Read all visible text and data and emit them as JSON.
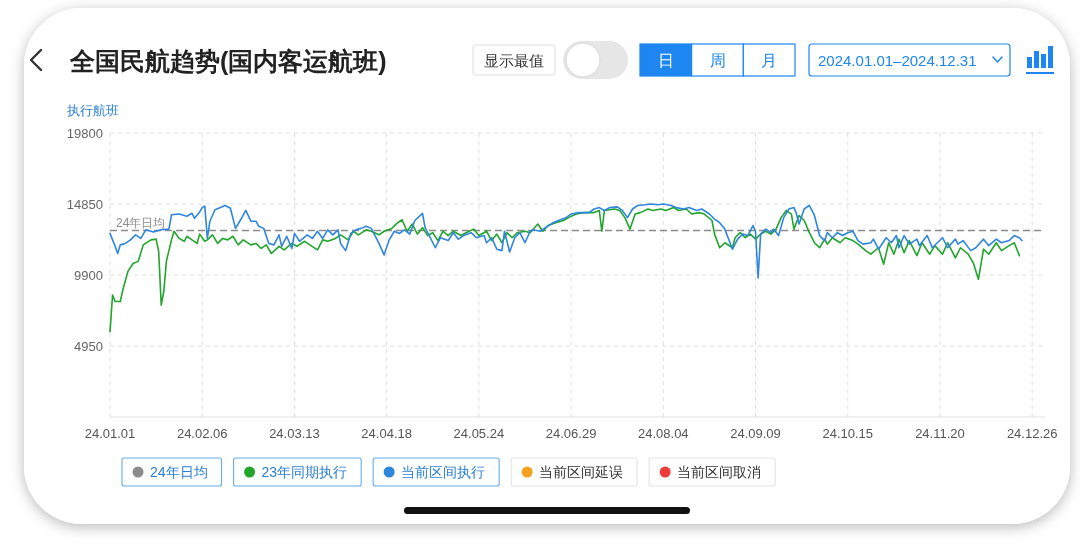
{
  "chart_data": {
    "type": "line",
    "title": "全国民航趋势(国内客运航班)",
    "ylabel": "执行航班",
    "annotations": [
      "显示最值",
      "日",
      "周",
      "月",
      "2024.01.01–2024.12.31"
    ],
    "xlim": [
      "2024-01-01",
      "2024-12-31"
    ],
    "xticks": [
      {
        "value": "2024-01-01",
        "label": "24.01.01"
      },
      {
        "value": "2024-02-06",
        "label": "24.02.06"
      },
      {
        "value": "2024-03-13",
        "label": "24.03.13"
      },
      {
        "value": "2024-04-18",
        "label": "24.04.18"
      },
      {
        "value": "2024-05-24",
        "label": "24.05.24"
      },
      {
        "value": "2024-06-29",
        "label": "24.06.29"
      },
      {
        "value": "2024-08-04",
        "label": "24.08.04"
      },
      {
        "value": "2024-09-09",
        "label": "24.09.09"
      },
      {
        "value": "2024-10-15",
        "label": "24.10.15"
      },
      {
        "value": "2024-11-20",
        "label": "24.11.20"
      },
      {
        "value": "2024-12-26",
        "label": "24.12.26"
      }
    ],
    "ylim": [
      0,
      19800
    ],
    "yticks": [
      4950,
      9900,
      14850,
      19800
    ],
    "grid": true,
    "legend": "bottom",
    "ref_lines": [
      {
        "axis": "y",
        "value": 13000,
        "label": "24年日均",
        "color": "#8c8c8c",
        "line_style": "dashed"
      }
    ],
    "series": [
      {
        "name": "23年同期执行",
        "color": "#22a52c",
        "x": [
          "2024-01-01",
          "2024-01-02",
          "2024-01-03",
          "2024-01-05",
          "2024-01-06",
          "2024-01-08",
          "2024-01-10",
          "2024-01-12",
          "2024-01-14",
          "2024-01-17",
          "2024-01-19",
          "2024-01-20",
          "2024-01-21",
          "2024-01-22",
          "2024-01-23",
          "2024-01-25",
          "2024-01-26",
          "2024-01-28",
          "2024-01-30",
          "2024-01-31",
          "2024-02-02",
          "2024-02-04",
          "2024-02-05",
          "2024-02-07",
          "2024-02-08",
          "2024-02-10",
          "2024-02-12",
          "2024-02-14",
          "2024-02-16",
          "2024-02-18",
          "2024-02-20",
          "2024-02-22",
          "2024-02-25",
          "2024-02-27",
          "2024-02-29",
          "2024-03-02",
          "2024-03-04",
          "2024-03-07",
          "2024-03-09",
          "2024-03-12",
          "2024-03-14",
          "2024-03-17",
          "2024-03-19",
          "2024-03-22",
          "2024-03-24",
          "2024-03-26",
          "2024-03-29",
          "2024-03-31",
          "2024-04-03",
          "2024-04-05",
          "2024-04-07",
          "2024-04-10",
          "2024-04-12",
          "2024-04-15",
          "2024-04-17",
          "2024-04-20",
          "2024-04-22",
          "2024-04-24",
          "2024-04-26",
          "2024-04-28",
          "2024-04-30",
          "2024-05-02",
          "2024-05-04",
          "2024-05-06",
          "2024-05-08",
          "2024-05-10",
          "2024-05-12",
          "2024-05-14",
          "2024-05-17",
          "2024-05-19",
          "2024-05-22",
          "2024-05-24",
          "2024-05-27",
          "2024-05-29",
          "2024-05-31",
          "2024-06-02",
          "2024-06-04",
          "2024-06-06",
          "2024-06-08",
          "2024-06-11",
          "2024-06-13",
          "2024-06-16",
          "2024-06-18",
          "2024-06-20",
          "2024-06-23",
          "2024-06-26",
          "2024-06-28",
          "2024-07-01",
          "2024-07-04",
          "2024-07-08",
          "2024-07-10",
          "2024-07-11",
          "2024-07-12",
          "2024-07-16",
          "2024-07-18",
          "2024-07-20",
          "2024-07-22",
          "2024-07-24",
          "2024-07-26",
          "2024-07-29",
          "2024-07-31",
          "2024-08-03",
          "2024-08-05",
          "2024-08-08",
          "2024-08-10",
          "2024-08-13",
          "2024-08-15",
          "2024-08-18",
          "2024-08-20",
          "2024-08-23",
          "2024-08-24",
          "2024-08-26",
          "2024-08-28",
          "2024-08-31",
          "2024-09-01",
          "2024-09-03",
          "2024-09-05",
          "2024-09-07",
          "2024-09-09",
          "2024-09-11",
          "2024-09-13",
          "2024-09-15",
          "2024-09-17",
          "2024-09-19",
          "2024-09-21",
          "2024-09-23",
          "2024-09-24",
          "2024-09-26",
          "2024-09-28",
          "2024-09-30",
          "2024-10-02",
          "2024-10-04",
          "2024-10-06",
          "2024-10-07",
          "2024-10-09",
          "2024-10-12",
          "2024-10-14",
          "2024-10-17",
          "2024-10-19",
          "2024-10-22",
          "2024-10-24",
          "2024-10-27",
          "2024-10-29",
          "2024-10-31",
          "2024-11-02",
          "2024-11-04",
          "2024-11-06",
          "2024-11-08",
          "2024-11-11",
          "2024-11-13",
          "2024-11-16",
          "2024-11-18",
          "2024-11-21",
          "2024-11-23",
          "2024-11-26",
          "2024-11-28",
          "2024-12-01",
          "2024-12-03",
          "2024-12-05",
          "2024-12-07",
          "2024-12-09",
          "2024-12-12",
          "2024-12-14",
          "2024-12-17",
          "2024-12-19",
          "2024-12-21"
        ],
        "values": [
          5950,
          8500,
          8050,
          8050,
          8850,
          10150,
          10700,
          10850,
          12000,
          12350,
          12400,
          11550,
          7800,
          8750,
          10850,
          12350,
          12950,
          12450,
          12250,
          12600,
          12350,
          12100,
          12750,
          12250,
          12350,
          12700,
          12100,
          12450,
          12350,
          12600,
          12000,
          12350,
          12000,
          12100,
          11750,
          12000,
          11400,
          11900,
          11650,
          12100,
          11900,
          12250,
          12000,
          11650,
          12350,
          12250,
          12450,
          12700,
          12350,
          12950,
          12700,
          13050,
          12950,
          12700,
          12950,
          13150,
          13500,
          13750,
          12950,
          13450,
          12750,
          13200,
          12650,
          12850,
          12300,
          12950,
          12650,
          12950,
          12650,
          12850,
          13100,
          12650,
          12950,
          12300,
          12750,
          12150,
          12850,
          12500,
          12850,
          12950,
          12850,
          13450,
          12950,
          13350,
          13550,
          13700,
          13900,
          14150,
          14250,
          14250,
          14400,
          12950,
          14400,
          14500,
          14400,
          13900,
          13100,
          14150,
          14250,
          14500,
          14400,
          14500,
          14400,
          14600,
          14400,
          14500,
          14150,
          14250,
          14150,
          13700,
          12750,
          11800,
          12150,
          11800,
          12500,
          12850,
          12500,
          12750,
          12400,
          12750,
          12950,
          12750,
          13100,
          13900,
          14400,
          14150,
          13100,
          14050,
          13700,
          12850,
          12150,
          11800,
          12400,
          12050,
          12500,
          12150,
          12500,
          12300,
          12050,
          11600,
          11350,
          11800,
          10650,
          12150,
          11350,
          12400,
          11450,
          12300,
          11250,
          12150,
          11350,
          11950,
          11350,
          12150,
          11100,
          11800,
          11350,
          10750,
          9600,
          11700,
          11350,
          12150,
          11600,
          11950,
          12150,
          11250
        ]
      },
      {
        "name": "当前区间执行",
        "color": "#2f86de",
        "x": [
          "2024-01-01",
          "2024-01-03",
          "2024-01-04",
          "2024-01-05",
          "2024-01-07",
          "2024-01-09",
          "2024-01-11",
          "2024-01-13",
          "2024-01-15",
          "2024-01-18",
          "2024-01-21",
          "2024-01-24",
          "2024-01-25",
          "2024-01-28",
          "2024-01-31",
          "2024-02-02",
          "2024-02-03",
          "2024-02-05",
          "2024-02-06",
          "2024-02-07",
          "2024-02-08",
          "2024-02-09",
          "2024-02-11",
          "2024-02-15",
          "2024-02-17",
          "2024-02-19",
          "2024-02-21",
          "2024-02-23",
          "2024-02-25",
          "2024-02-27",
          "2024-02-28",
          "2024-03-01",
          "2024-03-03",
          "2024-03-05",
          "2024-03-07",
          "2024-03-08",
          "2024-03-10",
          "2024-03-12",
          "2024-03-13",
          "2024-03-15",
          "2024-03-18",
          "2024-03-20",
          "2024-03-22",
          "2024-03-24",
          "2024-03-26",
          "2024-03-28",
          "2024-03-30",
          "2024-03-31",
          "2024-04-02",
          "2024-04-04",
          "2024-04-06",
          "2024-04-08",
          "2024-04-10",
          "2024-04-12",
          "2024-04-15",
          "2024-04-17",
          "2024-04-19",
          "2024-04-21",
          "2024-04-23",
          "2024-04-25",
          "2024-04-27",
          "2024-04-29",
          "2024-05-02",
          "2024-05-03",
          "2024-05-05",
          "2024-05-07",
          "2024-05-09",
          "2024-05-12",
          "2024-05-14",
          "2024-05-16",
          "2024-05-18",
          "2024-05-21",
          "2024-05-23",
          "2024-05-26",
          "2024-05-27",
          "2024-05-29",
          "2024-05-31",
          "2024-06-02",
          "2024-06-03",
          "2024-06-05",
          "2024-06-07",
          "2024-06-09",
          "2024-06-11",
          "2024-06-13",
          "2024-06-14",
          "2024-06-17",
          "2024-06-19",
          "2024-06-22",
          "2024-06-24",
          "2024-06-27",
          "2024-06-29",
          "2024-07-02",
          "2024-07-06",
          "2024-07-08",
          "2024-07-10",
          "2024-07-12",
          "2024-07-14",
          "2024-07-17",
          "2024-07-19",
          "2024-07-21",
          "2024-07-23",
          "2024-07-25",
          "2024-07-28",
          "2024-07-30",
          "2024-08-02",
          "2024-08-04",
          "2024-08-07",
          "2024-08-09",
          "2024-08-12",
          "2024-08-14",
          "2024-08-17",
          "2024-08-19",
          "2024-08-22",
          "2024-08-24",
          "2024-08-26",
          "2024-08-28",
          "2024-08-31",
          "2024-09-02",
          "2024-09-04",
          "2024-09-06",
          "2024-09-08",
          "2024-09-09",
          "2024-09-10",
          "2024-09-11",
          "2024-09-13",
          "2024-09-15",
          "2024-09-16",
          "2024-09-18",
          "2024-09-20",
          "2024-09-22",
          "2024-09-24",
          "2024-09-25",
          "2024-09-26",
          "2024-09-28",
          "2024-09-30",
          "2024-10-02",
          "2024-10-04",
          "2024-10-06",
          "2024-10-07",
          "2024-10-09",
          "2024-10-11",
          "2024-10-13",
          "2024-10-15",
          "2024-10-17",
          "2024-10-19",
          "2024-10-21",
          "2024-10-24",
          "2024-10-25",
          "2024-10-27",
          "2024-10-30",
          "2024-11-01",
          "2024-11-03",
          "2024-11-04",
          "2024-11-06",
          "2024-11-08",
          "2024-11-11",
          "2024-11-12",
          "2024-11-15",
          "2024-11-17",
          "2024-11-19",
          "2024-11-21",
          "2024-11-23",
          "2024-11-26",
          "2024-11-27",
          "2024-11-29",
          "2024-12-02",
          "2024-12-04",
          "2024-12-07",
          "2024-12-09",
          "2024-12-12",
          "2024-12-14",
          "2024-12-17",
          "2024-12-19",
          "2024-12-21",
          "2024-12-22"
        ],
        "values": [
          12800,
          11900,
          11400,
          12000,
          12100,
          12350,
          12700,
          12450,
          13050,
          12900,
          13050,
          13100,
          14100,
          14150,
          14000,
          14200,
          13850,
          14300,
          14600,
          14700,
          12450,
          13650,
          14450,
          14750,
          14550,
          13150,
          13750,
          14400,
          13650,
          13650,
          13300,
          13150,
          12100,
          12000,
          12700,
          11900,
          12600,
          11750,
          12800,
          12250,
          12700,
          12450,
          12950,
          12450,
          13050,
          12700,
          13050,
          12100,
          11600,
          12800,
          13050,
          13150,
          13300,
          13150,
          12100,
          11300,
          12350,
          12950,
          12800,
          13050,
          12750,
          13700,
          14200,
          13200,
          12500,
          11800,
          12500,
          12300,
          12850,
          12400,
          12650,
          12850,
          12500,
          12650,
          12150,
          12500,
          11700,
          11600,
          12950,
          11500,
          12500,
          12850,
          12150,
          12950,
          13050,
          12950,
          13200,
          13550,
          13700,
          13900,
          14150,
          14250,
          14250,
          14500,
          14600,
          14400,
          14600,
          14650,
          14400,
          13900,
          14500,
          14750,
          14800,
          14850,
          14800,
          14850,
          14750,
          14600,
          14500,
          14600,
          14400,
          14500,
          14150,
          13800,
          13550,
          13100,
          11700,
          12400,
          12750,
          12650,
          13350,
          12950,
          9700,
          12750,
          13100,
          12850,
          13100,
          12650,
          13900,
          14500,
          14600,
          14150,
          13450,
          14500,
          14750,
          14050,
          12650,
          12300,
          12850,
          12500,
          12850,
          12650,
          12850,
          12950,
          12300,
          12050,
          12150,
          12400,
          11700,
          12500,
          12150,
          12650,
          11800,
          12650,
          12050,
          12400,
          11950,
          12650,
          11800,
          12150,
          12500,
          11800,
          12400,
          12050,
          12300,
          11600,
          11800,
          12400,
          11950,
          12400,
          12150,
          12300,
          12650,
          12500,
          12300
        ]
      },
      {
        "name": "当前区间延误",
        "color": "#f5a020"
      },
      {
        "name": "当前区间取消",
        "color": "#ee3b3b"
      }
    ]
  }
}
